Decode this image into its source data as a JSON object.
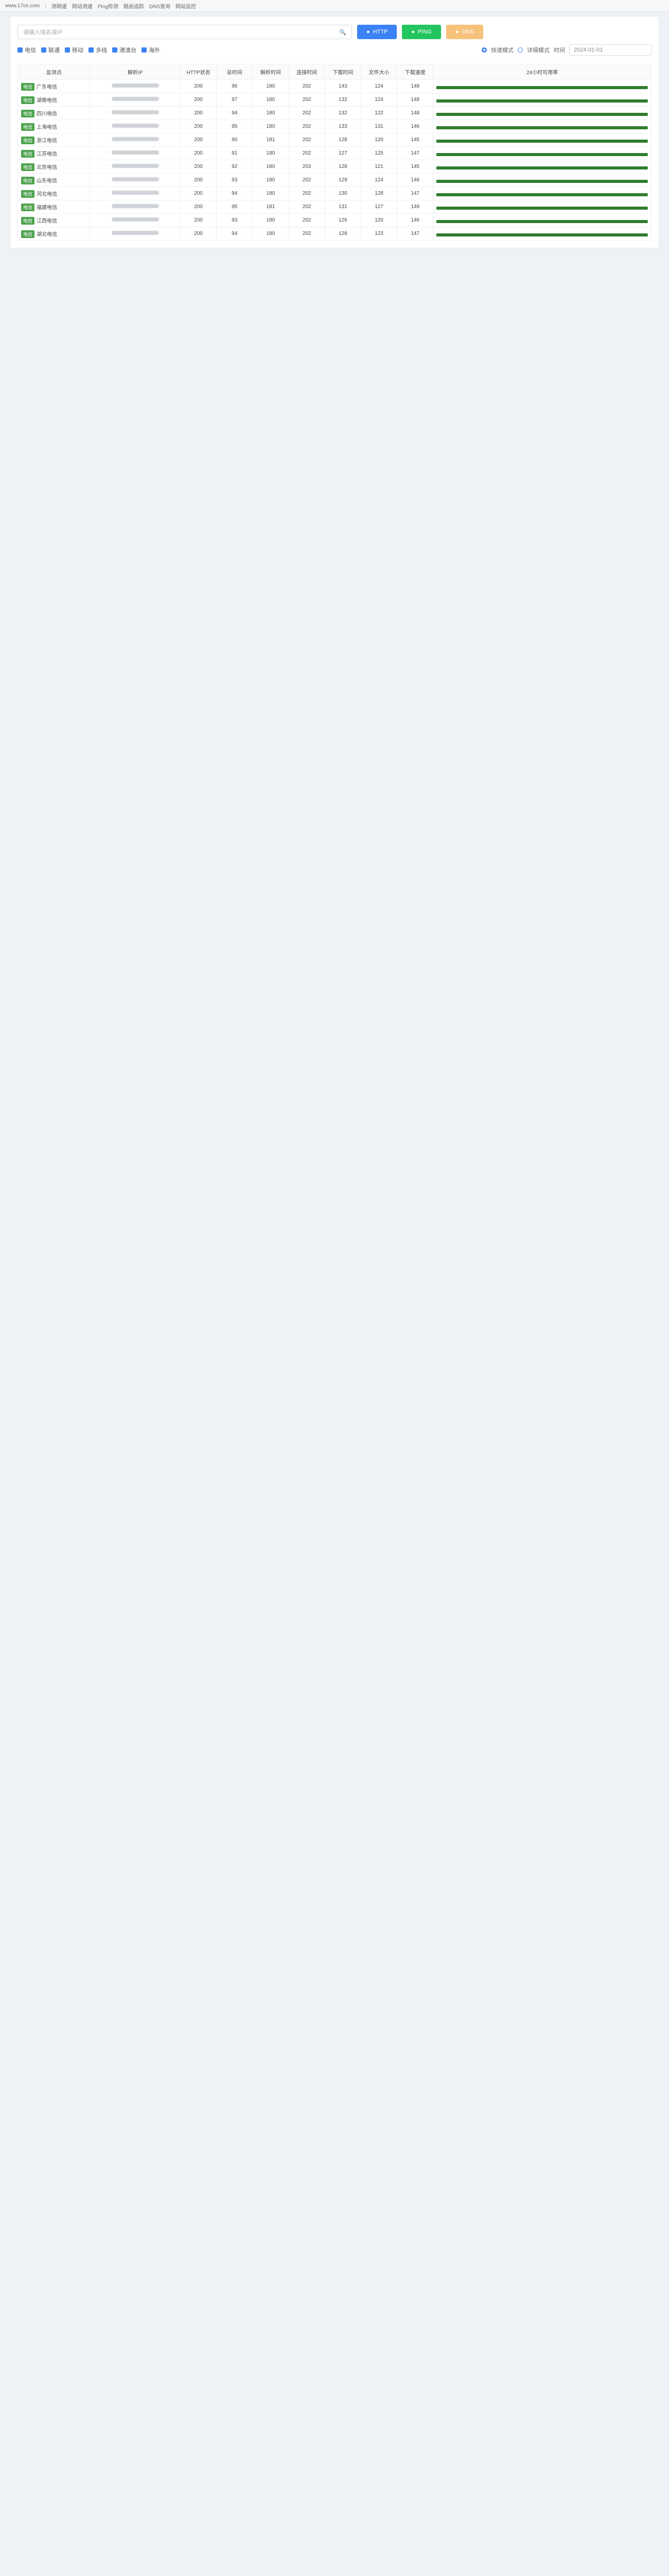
{
  "topbar": {
    "items": [
      "www.17ce.com",
      "测网速",
      "网站测速",
      "Ping检测",
      "路由追踪",
      "DNS查询",
      "网站监控"
    ]
  },
  "controls": {
    "search_placeholder": "请输入域名或IP",
    "buttons": [
      {
        "label": "HTTP",
        "color": "#3b82f6"
      },
      {
        "label": "PING",
        "color": "#22c55e"
      },
      {
        "label": "DNS",
        "color": "#f6c17a"
      }
    ],
    "checkboxes": [
      "电信",
      "联通",
      "移动",
      "多线",
      "港澳台",
      "海外"
    ],
    "radio_left": "快速模式",
    "radio_right": "详细模式",
    "time_label": "时间",
    "time_value": "2024-01-01"
  },
  "table": {
    "headers": [
      "监测点",
      "解析IP",
      "HTTP状态",
      "总时间",
      "解析时间",
      "连接时间",
      "下载时间",
      "文件大小",
      "下载速度",
      "24小时可用率"
    ],
    "rows": [
      {
        "isp_tag": "电信",
        "tag_type": "green",
        "location": "广东电信",
        "status": "200",
        "t1": "96",
        "t2": "180",
        "t3": "202",
        "t4": "143",
        "t5": "124",
        "t6": "148"
      },
      {
        "isp_tag": "电信",
        "tag_type": "green",
        "location": "湖南电信",
        "status": "200",
        "t1": "97",
        "t2": "180",
        "t3": "202",
        "t4": "132",
        "t5": "124",
        "t6": "148"
      },
      {
        "isp_tag": "电信",
        "tag_type": "green",
        "location": "四川电信",
        "status": "200",
        "t1": "94",
        "t2": "180",
        "t3": "202",
        "t4": "132",
        "t5": "122",
        "t6": "148"
      },
      {
        "isp_tag": "电信",
        "tag_type": "green",
        "location": "上海电信",
        "status": "200",
        "t1": "95",
        "t2": "180",
        "t3": "202",
        "t4": "133",
        "t5": "131",
        "t6": "146"
      },
      {
        "isp_tag": "电信",
        "tag_type": "green",
        "location": "浙江电信",
        "status": "200",
        "t1": "90",
        "t2": "181",
        "t3": "202",
        "t4": "128",
        "t5": "120",
        "t6": "145"
      },
      {
        "isp_tag": "电信",
        "tag_type": "green",
        "location": "江苏电信",
        "status": "200",
        "t1": "91",
        "t2": "180",
        "t3": "202",
        "t4": "127",
        "t5": "125",
        "t6": "147"
      },
      {
        "isp_tag": "电信",
        "tag_type": "green",
        "location": "北京电信",
        "status": "200",
        "t1": "92",
        "t2": "180",
        "t3": "203",
        "t4": "128",
        "t5": "121",
        "t6": "145"
      },
      {
        "isp_tag": "电信",
        "tag_type": "green",
        "location": "山东电信",
        "status": "200",
        "t1": "93",
        "t2": "180",
        "t3": "202",
        "t4": "129",
        "t5": "124",
        "t6": "146"
      },
      {
        "isp_tag": "电信",
        "tag_type": "green",
        "location": "河北电信",
        "status": "200",
        "t1": "94",
        "t2": "180",
        "t3": "202",
        "t4": "130",
        "t5": "128",
        "t6": "147"
      },
      {
        "isp_tag": "电信",
        "tag_type": "green",
        "location": "福建电信",
        "status": "200",
        "t1": "95",
        "t2": "181",
        "t3": "202",
        "t4": "131",
        "t5": "127",
        "t6": "149"
      },
      {
        "isp_tag": "电信",
        "tag_type": "green",
        "location": "江西电信",
        "status": "200",
        "t1": "93",
        "t2": "180",
        "t3": "202",
        "t4": "126",
        "t5": "120",
        "t6": "146"
      },
      {
        "isp_tag": "电信",
        "tag_type": "green",
        "location": "湖北电信",
        "status": "200",
        "t1": "94",
        "t2": "180",
        "t3": "202",
        "t4": "128",
        "t5": "123",
        "t6": "147"
      }
    ]
  }
}
